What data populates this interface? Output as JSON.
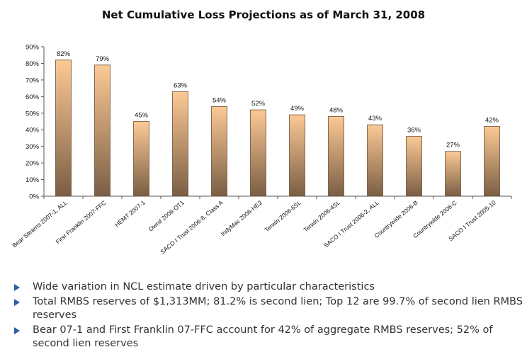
{
  "chart_data": {
    "type": "bar",
    "title": "Net Cumulative Loss Projections as of March 31, 2008",
    "categories": [
      "Bear Stearns 2007-1, ALL",
      "First Franklin 2007-FFC",
      "HEMT 2007-1",
      "Ownit 2006-OT1",
      "SACO I Trust 2006-8, Class A",
      "IndyMac 2006-HE2",
      "Terwin 2006-6SL",
      "Terwin 2006-4SL",
      "SACO I Trust 2006-2, ALL",
      "Countrywide 2006-B",
      "Countrywide 2006-C",
      "SACO I Trust 2005-10"
    ],
    "values": [
      82,
      79,
      45,
      63,
      54,
      52,
      49,
      48,
      43,
      36,
      27,
      42
    ],
    "value_labels": [
      "82%",
      "79%",
      "45%",
      "63%",
      "54%",
      "52%",
      "49%",
      "48%",
      "43%",
      "36%",
      "27%",
      "42%"
    ],
    "ylim": [
      0,
      90
    ],
    "yticks": [
      0,
      10,
      20,
      30,
      40,
      50,
      60,
      70,
      80,
      90
    ],
    "ytick_labels": [
      "0%",
      "10%",
      "20%",
      "30%",
      "40%",
      "50%",
      "60%",
      "70%",
      "80%",
      "90%"
    ],
    "grid": false,
    "bar_color_top": "#fcc995",
    "bar_color_bottom": "#7a5e44"
  },
  "bullets": [
    "Wide variation in NCL estimate driven by particular characteristics",
    "Total RMBS reserves of $1,313MM; 81.2% is second lien; Top 12 are 99.7% of second lien RMBS reserves",
    "Bear 07-1 and First Franklin 07-FFC account for 42% of aggregate RMBS reserves; 52% of second lien reserves"
  ],
  "colors": {
    "bullet_accent": "#2a5ea8"
  },
  "icons": {
    "bullet": "triangle-right-icon"
  }
}
